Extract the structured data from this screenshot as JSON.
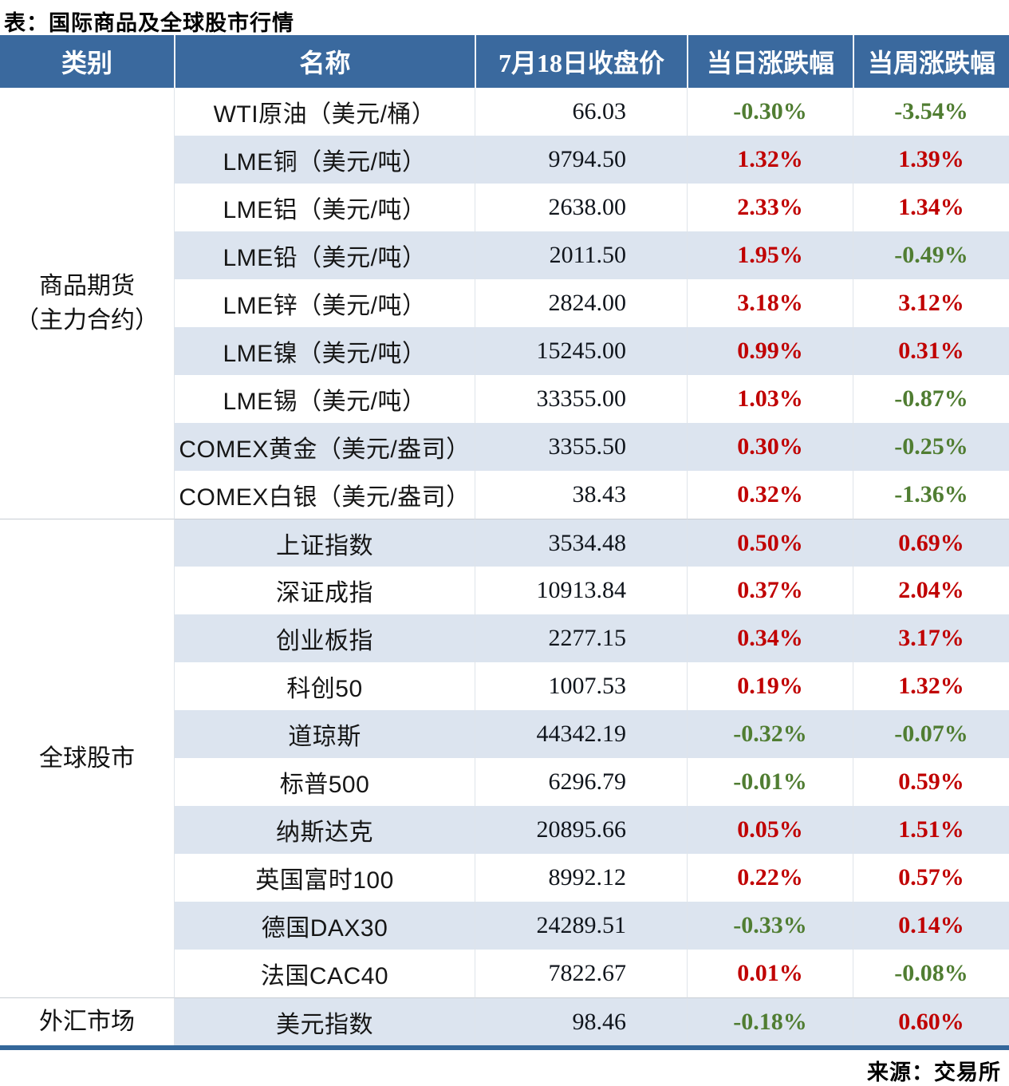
{
  "title": "表：国际商品及全球股市行情",
  "footer": {
    "source": "来源：交易所"
  },
  "colors": {
    "header_bg": "#3a699e",
    "row_alt_bg": "#dce4ef",
    "up_red": "#c00000",
    "down_green": "#507d32",
    "bottom_rule": "#34679a"
  },
  "chart_data": {
    "type": "table",
    "title": "表：国际商品及全球股市行情",
    "columns": [
      "类别",
      "名称",
      "7月18日收盘价",
      "当日涨跌幅",
      "当周涨跌幅"
    ],
    "groups": [
      {
        "category": [
          "商品期货",
          "（主力合约）"
        ],
        "rows": [
          {
            "name": "WTI原油（美元/桶）",
            "close": "66.03",
            "day": "-0.30%",
            "week": "-3.54%"
          },
          {
            "name": "LME铜（美元/吨）",
            "close": "9794.50",
            "day": "1.32%",
            "week": "1.39%"
          },
          {
            "name": "LME铝（美元/吨）",
            "close": "2638.00",
            "day": "2.33%",
            "week": "1.34%"
          },
          {
            "name": "LME铅（美元/吨）",
            "close": "2011.50",
            "day": "1.95%",
            "week": "-0.49%"
          },
          {
            "name": "LME锌（美元/吨）",
            "close": "2824.00",
            "day": "3.18%",
            "week": "3.12%"
          },
          {
            "name": "LME镍（美元/吨）",
            "close": "15245.00",
            "day": "0.99%",
            "week": "0.31%"
          },
          {
            "name": "LME锡（美元/吨）",
            "close": "33355.00",
            "day": "1.03%",
            "week": "-0.87%"
          },
          {
            "name": "COMEX黄金（美元/盎司）",
            "close": "3355.50",
            "day": "0.30%",
            "week": "-0.25%"
          },
          {
            "name": "COMEX白银（美元/盎司）",
            "close": "38.43",
            "day": "0.32%",
            "week": "-1.36%"
          }
        ]
      },
      {
        "category": [
          "全球股市"
        ],
        "rows": [
          {
            "name": "上证指数",
            "close": "3534.48",
            "day": "0.50%",
            "week": "0.69%"
          },
          {
            "name": "深证成指",
            "close": "10913.84",
            "day": "0.37%",
            "week": "2.04%"
          },
          {
            "name": "创业板指",
            "close": "2277.15",
            "day": "0.34%",
            "week": "3.17%"
          },
          {
            "name": "科创50",
            "close": "1007.53",
            "day": "0.19%",
            "week": "1.32%"
          },
          {
            "name": "道琼斯",
            "close": "44342.19",
            "day": "-0.32%",
            "week": "-0.07%"
          },
          {
            "name": "标普500",
            "close": "6296.79",
            "day": "-0.01%",
            "week": "0.59%"
          },
          {
            "name": "纳斯达克",
            "close": "20895.66",
            "day": "0.05%",
            "week": "1.51%"
          },
          {
            "name": "英国富时100",
            "close": "8992.12",
            "day": "0.22%",
            "week": "0.57%"
          },
          {
            "name": "德国DAX30",
            "close": "24289.51",
            "day": "-0.33%",
            "week": "0.14%"
          },
          {
            "name": "法国CAC40",
            "close": "7822.67",
            "day": "0.01%",
            "week": "-0.08%"
          }
        ]
      },
      {
        "category": [
          "外汇市场"
        ],
        "rows": [
          {
            "name": "美元指数",
            "close": "98.46",
            "day": "-0.18%",
            "week": "0.60%"
          }
        ]
      }
    ]
  }
}
